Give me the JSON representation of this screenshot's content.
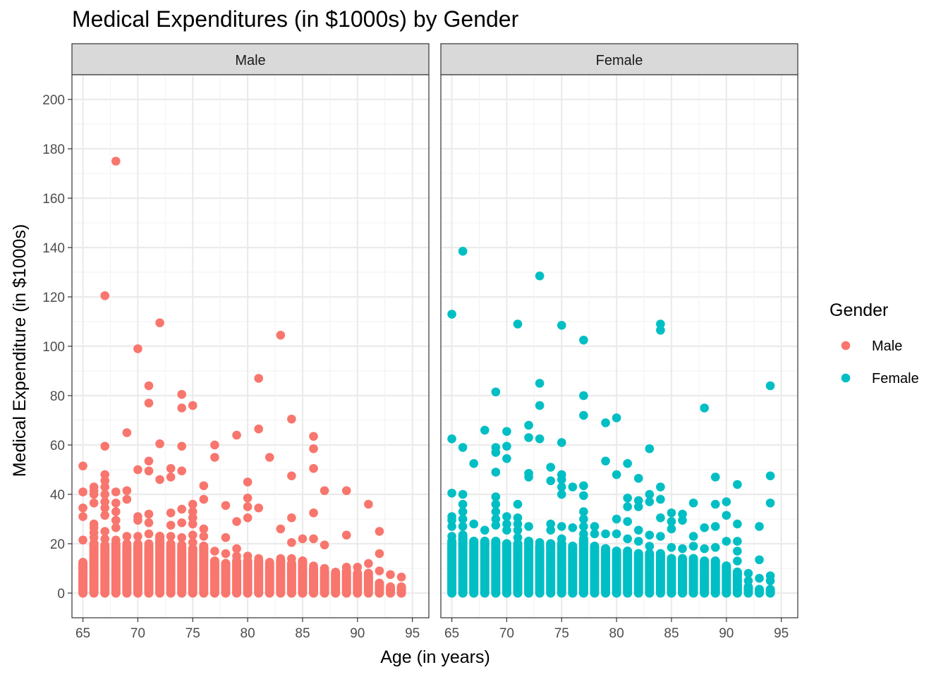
{
  "chart_data": {
    "type": "scatter",
    "title": "Medical Expenditures (in $1000s) by Gender",
    "xlabel": "Age (in years)",
    "ylabel": "Medical Expenditure (in $1000s)",
    "xlim": [
      64,
      96.5
    ],
    "ylim": [
      -10,
      210
    ],
    "x_ticks": [
      65,
      70,
      75,
      80,
      85,
      90,
      95
    ],
    "y_ticks": [
      0,
      20,
      40,
      60,
      80,
      100,
      120,
      140,
      160,
      180,
      200
    ],
    "grid": true,
    "legend": {
      "title": "Gender",
      "placement": "right"
    },
    "panels": [
      {
        "strip": "Male",
        "series": "Male",
        "color": "#F8766D",
        "points": [
          [
            65,
            51.5
          ],
          [
            65,
            41
          ],
          [
            65,
            34.5
          ],
          [
            65,
            31
          ],
          [
            65,
            21.5
          ],
          [
            65,
            12.5
          ],
          [
            66,
            43
          ],
          [
            66,
            41.5
          ],
          [
            66,
            40
          ],
          [
            66,
            36.5
          ],
          [
            66,
            28
          ],
          [
            66,
            26.5
          ],
          [
            66,
            24.5
          ],
          [
            66,
            22.5
          ],
          [
            66,
            20
          ],
          [
            67,
            120.5
          ],
          [
            67,
            59.5
          ],
          [
            67,
            48
          ],
          [
            67,
            45.5
          ],
          [
            67,
            43
          ],
          [
            67,
            40
          ],
          [
            67,
            37
          ],
          [
            67,
            34.5
          ],
          [
            67,
            31.5
          ],
          [
            67,
            25
          ],
          [
            67,
            22
          ],
          [
            67,
            19.5
          ],
          [
            68,
            175
          ],
          [
            68,
            41
          ],
          [
            68,
            36.5
          ],
          [
            68,
            33
          ],
          [
            68,
            29.5
          ],
          [
            68,
            26.5
          ],
          [
            68,
            21.5
          ],
          [
            69,
            65
          ],
          [
            69,
            41.5
          ],
          [
            69,
            38
          ],
          [
            69,
            23
          ],
          [
            69,
            20
          ],
          [
            70,
            99
          ],
          [
            70,
            50
          ],
          [
            70,
            31
          ],
          [
            70,
            29.5
          ],
          [
            70,
            23
          ],
          [
            70,
            20
          ],
          [
            71,
            84
          ],
          [
            71,
            77
          ],
          [
            71,
            53.5
          ],
          [
            71,
            49.5
          ],
          [
            71,
            32
          ],
          [
            71,
            28.5
          ],
          [
            71,
            24
          ],
          [
            71,
            20
          ],
          [
            72,
            109.5
          ],
          [
            72,
            60.5
          ],
          [
            72,
            46
          ],
          [
            72,
            23
          ],
          [
            73,
            50.5
          ],
          [
            73,
            47
          ],
          [
            73,
            32.5
          ],
          [
            73,
            27.5
          ],
          [
            73,
            23
          ],
          [
            73,
            20
          ],
          [
            74,
            80.5
          ],
          [
            74,
            75
          ],
          [
            74,
            59.5
          ],
          [
            74,
            49.5
          ],
          [
            74,
            34
          ],
          [
            74,
            28.5
          ],
          [
            74,
            22.5
          ],
          [
            74,
            19.5
          ],
          [
            75,
            76
          ],
          [
            75,
            36
          ],
          [
            75,
            33
          ],
          [
            75,
            30.5
          ],
          [
            75,
            28
          ],
          [
            75,
            23.5
          ],
          [
            75,
            20.5
          ],
          [
            75,
            18
          ],
          [
            76,
            43.5
          ],
          [
            76,
            38
          ],
          [
            76,
            26
          ],
          [
            76,
            23
          ],
          [
            76,
            19
          ],
          [
            77,
            60
          ],
          [
            77,
            55
          ],
          [
            77,
            17
          ],
          [
            78,
            35.5
          ],
          [
            78,
            22.5
          ],
          [
            78,
            16
          ],
          [
            79,
            64
          ],
          [
            79,
            29
          ],
          [
            79,
            18
          ],
          [
            79,
            15
          ],
          [
            80,
            45
          ],
          [
            80,
            38.5
          ],
          [
            80,
            35
          ],
          [
            80,
            30.5
          ],
          [
            80,
            15
          ],
          [
            81,
            87
          ],
          [
            81,
            66.5
          ],
          [
            81,
            34.5
          ],
          [
            81,
            14
          ],
          [
            82,
            55
          ],
          [
            82,
            12.5
          ],
          [
            83,
            104.5
          ],
          [
            83,
            26
          ],
          [
            83,
            14
          ],
          [
            84,
            70.5
          ],
          [
            84,
            47.5
          ],
          [
            84,
            30.5
          ],
          [
            84,
            20.5
          ],
          [
            84,
            14
          ],
          [
            85,
            22
          ],
          [
            85,
            13
          ],
          [
            86,
            63.5
          ],
          [
            86,
            58.5
          ],
          [
            86,
            50.5
          ],
          [
            86,
            32.5
          ],
          [
            86,
            22
          ],
          [
            86,
            11
          ],
          [
            87,
            41.5
          ],
          [
            87,
            19.5
          ],
          [
            87,
            10
          ],
          [
            88,
            8.5
          ],
          [
            89,
            41.5
          ],
          [
            89,
            23.5
          ],
          [
            89,
            10.5
          ],
          [
            90,
            10.5
          ],
          [
            91,
            36
          ],
          [
            91,
            12
          ],
          [
            92,
            25
          ],
          [
            92,
            16
          ],
          [
            92,
            9
          ],
          [
            93,
            7.5
          ],
          [
            94,
            6.5
          ]
        ],
        "dense_columns": [
          [
            65,
            12
          ],
          [
            66,
            20
          ],
          [
            67,
            19
          ],
          [
            68,
            20
          ],
          [
            69,
            19
          ],
          [
            70,
            19
          ],
          [
            71,
            19
          ],
          [
            72,
            23
          ],
          [
            73,
            19
          ],
          [
            74,
            19
          ],
          [
            75,
            18
          ],
          [
            76,
            19
          ],
          [
            77,
            13
          ],
          [
            78,
            12
          ],
          [
            79,
            13
          ],
          [
            80,
            13
          ],
          [
            81,
            13
          ],
          [
            82,
            12
          ],
          [
            83,
            13
          ],
          [
            84,
            12
          ],
          [
            85,
            13
          ],
          [
            86,
            10
          ],
          [
            87,
            9
          ],
          [
            88,
            8
          ],
          [
            89,
            9
          ],
          [
            90,
            8
          ],
          [
            91,
            8
          ],
          [
            92,
            4
          ],
          [
            93,
            2.5
          ],
          [
            94,
            2.5
          ]
        ]
      },
      {
        "strip": "Female",
        "series": "Female",
        "color": "#00BFC4",
        "points": [
          [
            65,
            113
          ],
          [
            65,
            62.5
          ],
          [
            65,
            40.5
          ],
          [
            65,
            31
          ],
          [
            65,
            29.5
          ],
          [
            65,
            27
          ],
          [
            65,
            23
          ],
          [
            66,
            138.5
          ],
          [
            66,
            59
          ],
          [
            66,
            40
          ],
          [
            66,
            36
          ],
          [
            66,
            33
          ],
          [
            66,
            30
          ],
          [
            66,
            27
          ],
          [
            67,
            52.5
          ],
          [
            67,
            28
          ],
          [
            68,
            66
          ],
          [
            68,
            25.5
          ],
          [
            69,
            81.5
          ],
          [
            69,
            59
          ],
          [
            69,
            57
          ],
          [
            69,
            49
          ],
          [
            69,
            39
          ],
          [
            69,
            36
          ],
          [
            69,
            33
          ],
          [
            69,
            30
          ],
          [
            69,
            27.5
          ],
          [
            70,
            65.5
          ],
          [
            70,
            59.5
          ],
          [
            70,
            54.5
          ],
          [
            70,
            31
          ],
          [
            70,
            28
          ],
          [
            70,
            25.5
          ],
          [
            71,
            109
          ],
          [
            71,
            36
          ],
          [
            71,
            30.5
          ],
          [
            71,
            28
          ],
          [
            71,
            25.5
          ],
          [
            71,
            22.5
          ],
          [
            72,
            68
          ],
          [
            72,
            63
          ],
          [
            72,
            48.5
          ],
          [
            72,
            47
          ],
          [
            72,
            27
          ],
          [
            73,
            128.5
          ],
          [
            73,
            85
          ],
          [
            73,
            76
          ],
          [
            73,
            62.5
          ],
          [
            73,
            20.5
          ],
          [
            74,
            51
          ],
          [
            74,
            45.5
          ],
          [
            74,
            28
          ],
          [
            74,
            25.5
          ],
          [
            75,
            108.5
          ],
          [
            75,
            61
          ],
          [
            75,
            48
          ],
          [
            75,
            46
          ],
          [
            75,
            43
          ],
          [
            75,
            40
          ],
          [
            75,
            27
          ],
          [
            75,
            22
          ],
          [
            76,
            43
          ],
          [
            76,
            26.5
          ],
          [
            77,
            102.5
          ],
          [
            77,
            80
          ],
          [
            77,
            72
          ],
          [
            77,
            43.5
          ],
          [
            77,
            39.5
          ],
          [
            77,
            33
          ],
          [
            77,
            30
          ],
          [
            77,
            27
          ],
          [
            77,
            24
          ],
          [
            78,
            27
          ],
          [
            78,
            24
          ],
          [
            79,
            69
          ],
          [
            79,
            53.5
          ],
          [
            79,
            24
          ],
          [
            80,
            71
          ],
          [
            80,
            48
          ],
          [
            80,
            30
          ],
          [
            80,
            24
          ],
          [
            81,
            52.5
          ],
          [
            81,
            38.5
          ],
          [
            81,
            35
          ],
          [
            81,
            29
          ],
          [
            81,
            22
          ],
          [
            82,
            46.5
          ],
          [
            82,
            37.5
          ],
          [
            82,
            35
          ],
          [
            82,
            25.5
          ],
          [
            82,
            21
          ],
          [
            83,
            58.5
          ],
          [
            83,
            40
          ],
          [
            83,
            37
          ],
          [
            83,
            23.5
          ],
          [
            83,
            19
          ],
          [
            84,
            109
          ],
          [
            84,
            106.5
          ],
          [
            84,
            43
          ],
          [
            84,
            38
          ],
          [
            84,
            30.5
          ],
          [
            84,
            23
          ],
          [
            85,
            32.5
          ],
          [
            85,
            29
          ],
          [
            85,
            26
          ],
          [
            85,
            18.5
          ],
          [
            86,
            32
          ],
          [
            86,
            29.5
          ],
          [
            86,
            18
          ],
          [
            87,
            36.5
          ],
          [
            87,
            23
          ],
          [
            87,
            19
          ],
          [
            88,
            75
          ],
          [
            88,
            26.5
          ],
          [
            88,
            18
          ],
          [
            89,
            47
          ],
          [
            89,
            36
          ],
          [
            89,
            27
          ],
          [
            89,
            18.5
          ],
          [
            90,
            37
          ],
          [
            90,
            31.5
          ],
          [
            90,
            21
          ],
          [
            91,
            44
          ],
          [
            91,
            28
          ],
          [
            91,
            21
          ],
          [
            91,
            17
          ],
          [
            91,
            13
          ],
          [
            92,
            8
          ],
          [
            92,
            5
          ],
          [
            93,
            27
          ],
          [
            93,
            13.5
          ],
          [
            93,
            6
          ],
          [
            94,
            84
          ],
          [
            94,
            47.5
          ],
          [
            94,
            36.5
          ],
          [
            94,
            7
          ],
          [
            94,
            5
          ],
          [
            94,
            1
          ]
        ],
        "dense_columns": [
          [
            65,
            21
          ],
          [
            66,
            23.5
          ],
          [
            67,
            21
          ],
          [
            68,
            21
          ],
          [
            69,
            21
          ],
          [
            70,
            20
          ],
          [
            71,
            20
          ],
          [
            72,
            21
          ],
          [
            73,
            19
          ],
          [
            74,
            20
          ],
          [
            75,
            20
          ],
          [
            76,
            19
          ],
          [
            77,
            22
          ],
          [
            78,
            19
          ],
          [
            79,
            18
          ],
          [
            80,
            17
          ],
          [
            81,
            17
          ],
          [
            82,
            16
          ],
          [
            83,
            16
          ],
          [
            84,
            16
          ],
          [
            85,
            14
          ],
          [
            86,
            14
          ],
          [
            87,
            14
          ],
          [
            88,
            13
          ],
          [
            89,
            13
          ],
          [
            90,
            11
          ],
          [
            91,
            8.5
          ],
          [
            92,
            2.5
          ],
          [
            93,
            1.5
          ],
          [
            94,
            1.5
          ]
        ]
      }
    ]
  }
}
